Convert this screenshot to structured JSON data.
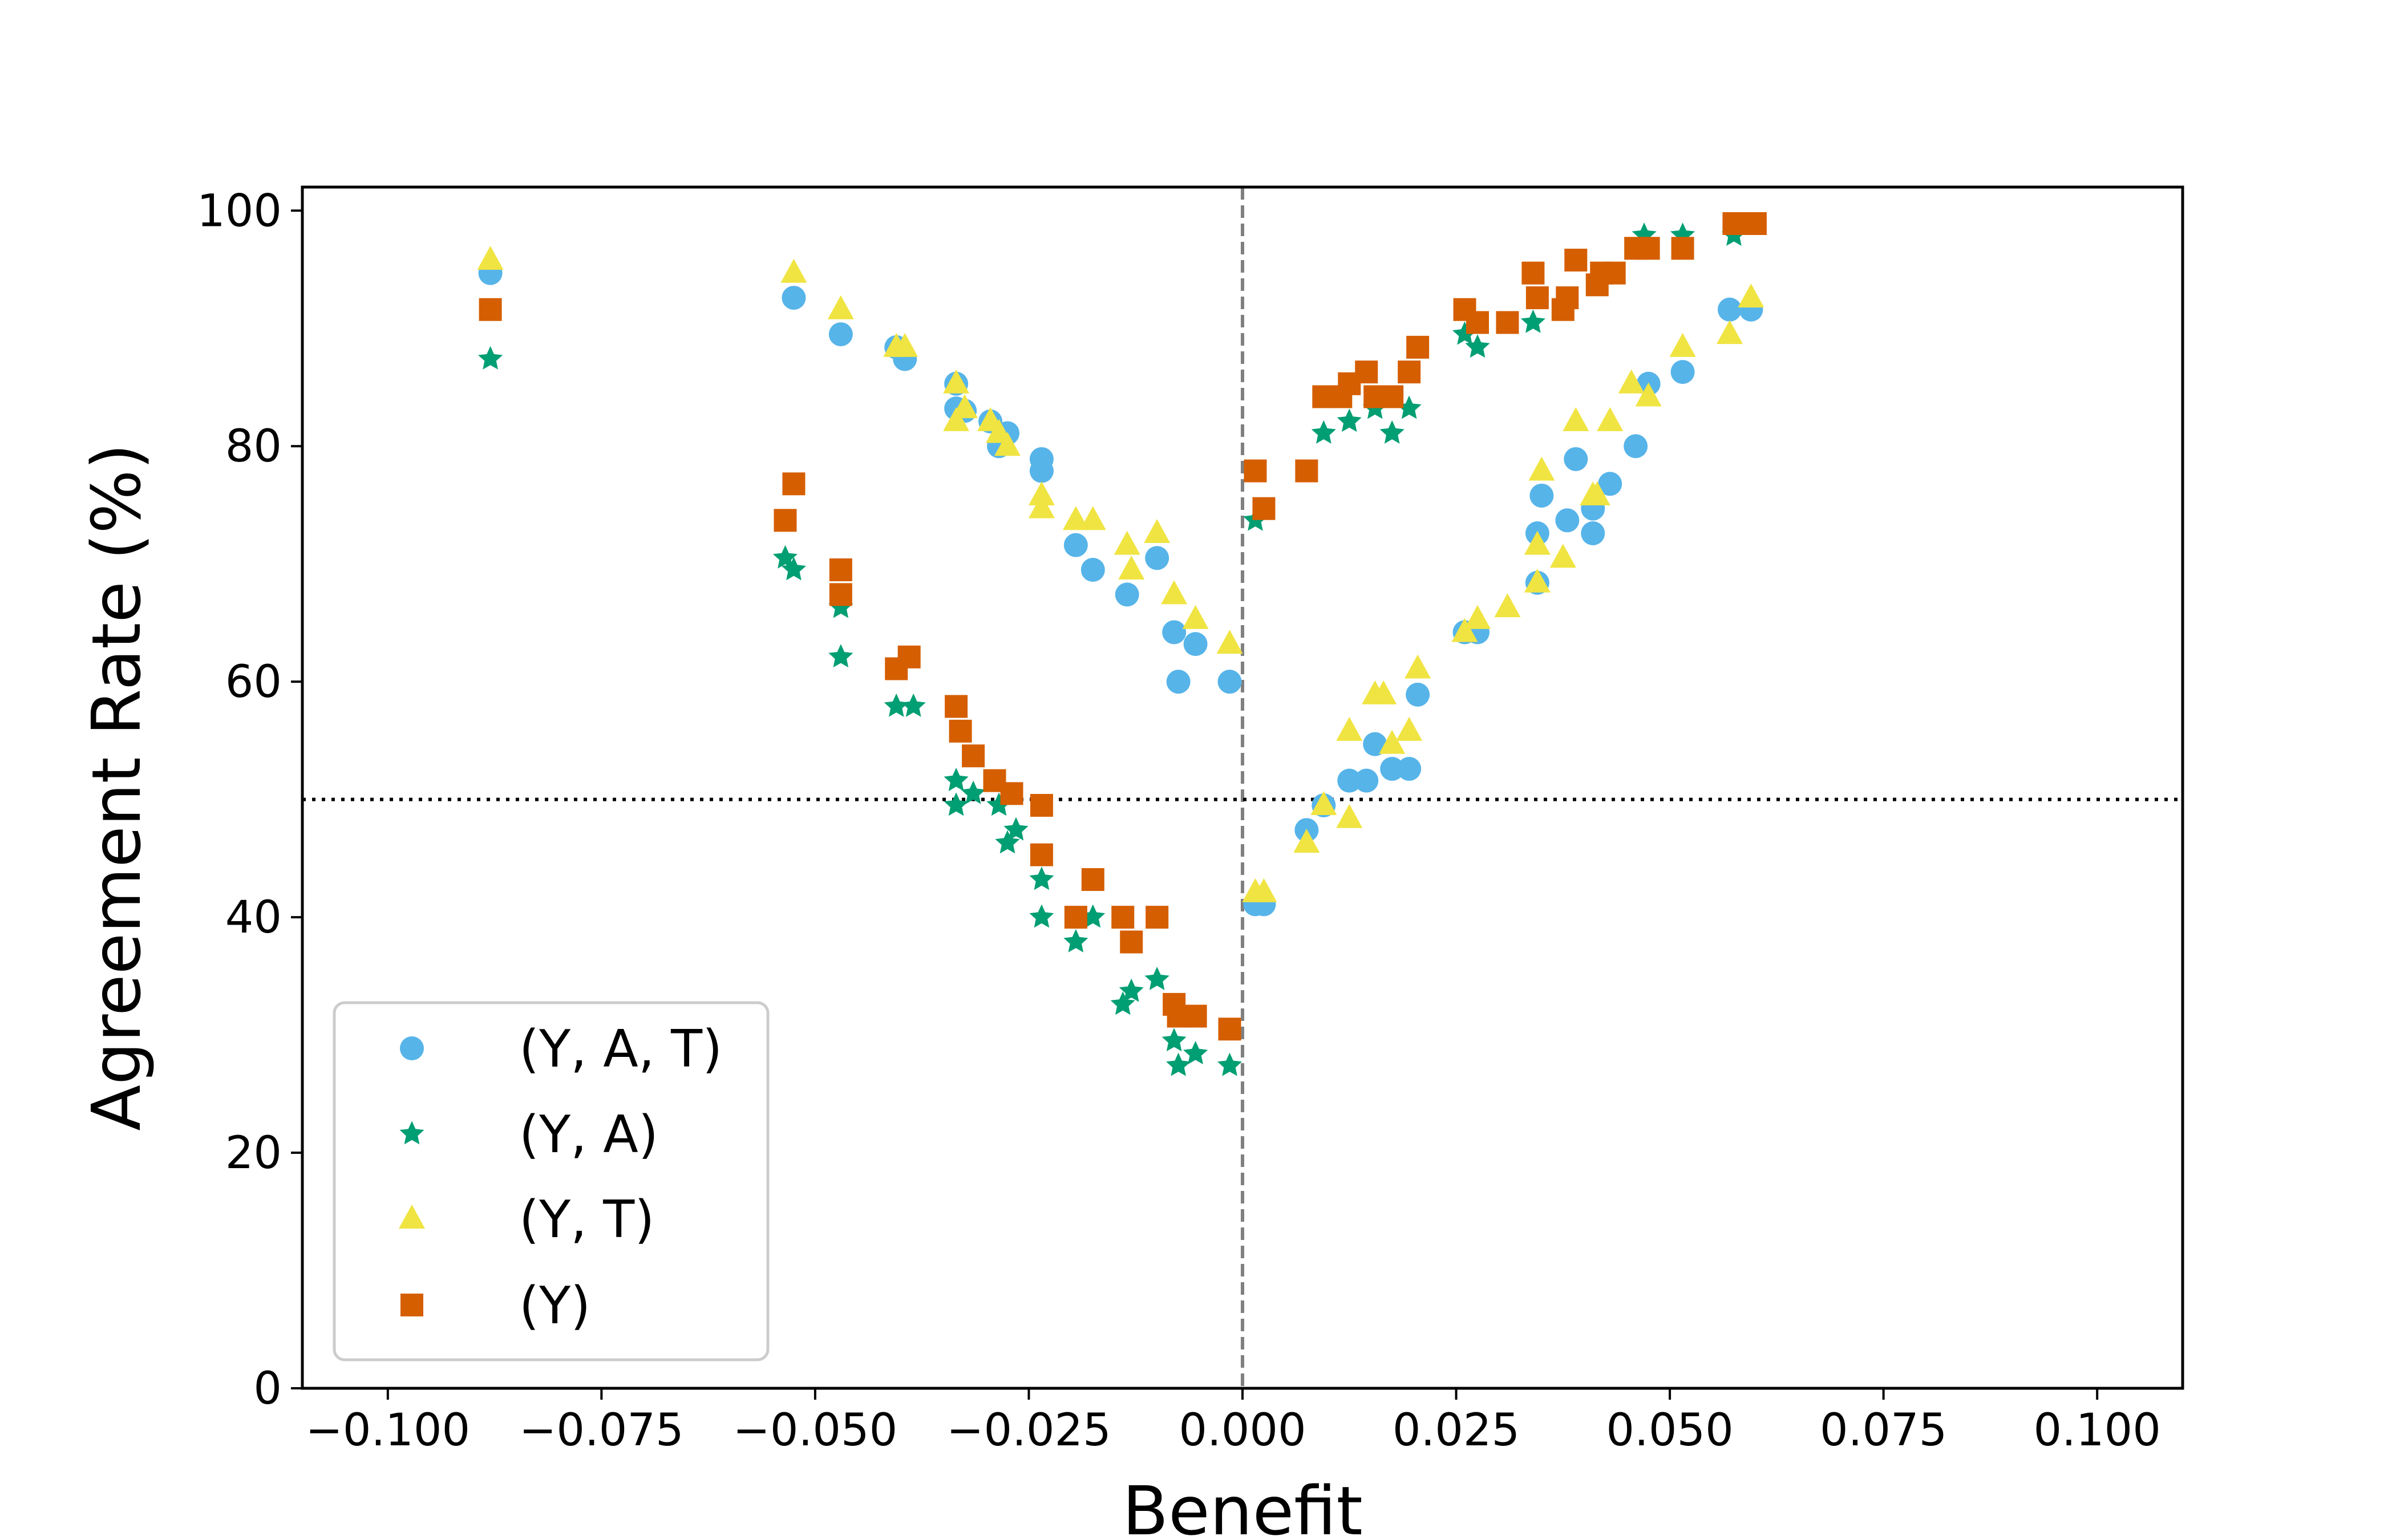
{
  "chart_data": {
    "type": "scatter",
    "title": "",
    "xlabel": "Benefit",
    "ylabel": "Agreement Rate (%)",
    "xlim": [
      -0.11,
      0.11
    ],
    "ylim": [
      0,
      102
    ],
    "x_ticks": [
      -0.1,
      -0.075,
      -0.05,
      -0.025,
      0.0,
      0.025,
      0.05,
      0.075,
      0.1
    ],
    "x_tick_labels": [
      "−0.100",
      "−0.075",
      "−0.050",
      "−0.025",
      "0.000",
      "0.025",
      "0.050",
      "0.075",
      "0.100"
    ],
    "y_ticks": [
      0,
      20,
      40,
      60,
      80,
      100
    ],
    "y_tick_labels": [
      "0",
      "20",
      "40",
      "60",
      "80",
      "100"
    ],
    "reference_lines": [
      {
        "orientation": "vertical",
        "value": 0.0,
        "style": "dashed",
        "color": "#808080"
      },
      {
        "orientation": "horizontal",
        "value": 50,
        "style": "dotted",
        "color": "#000000"
      }
    ],
    "legend_position": "bottom-left",
    "series": [
      {
        "name": "(Y, A, T)",
        "marker": "circle",
        "color": "#56B4E9",
        "points": [
          [
            -0.088,
            94.7
          ],
          [
            -0.0525,
            92.6
          ],
          [
            -0.047,
            89.5
          ],
          [
            -0.0405,
            88.4
          ],
          [
            -0.0395,
            87.4
          ],
          [
            -0.0335,
            85.3
          ],
          [
            -0.0335,
            83.2
          ],
          [
            -0.0325,
            83.0
          ],
          [
            -0.0295,
            82.1
          ],
          [
            -0.0275,
            81.1
          ],
          [
            -0.0285,
            80.0
          ],
          [
            -0.0235,
            78.9
          ],
          [
            -0.0235,
            77.9
          ],
          [
            -0.0195,
            71.6
          ],
          [
            -0.0175,
            69.5
          ],
          [
            -0.0135,
            67.4
          ],
          [
            -0.01,
            70.5
          ],
          [
            -0.008,
            64.2
          ],
          [
            -0.0075,
            60.0
          ],
          [
            -0.0055,
            63.2
          ],
          [
            -0.0015,
            60.0
          ],
          [
            0.0015,
            41.1
          ],
          [
            0.0025,
            41.1
          ],
          [
            0.0075,
            47.4
          ],
          [
            0.0095,
            49.5
          ],
          [
            0.0125,
            51.6
          ],
          [
            0.0145,
            51.6
          ],
          [
            0.0155,
            54.7
          ],
          [
            0.0175,
            52.6
          ],
          [
            0.0195,
            52.6
          ],
          [
            0.0205,
            58.9
          ],
          [
            0.026,
            64.2
          ],
          [
            0.0275,
            64.2
          ],
          [
            0.0345,
            72.6
          ],
          [
            0.0345,
            68.4
          ],
          [
            0.035,
            75.8
          ],
          [
            0.038,
            73.7
          ],
          [
            0.039,
            78.9
          ],
          [
            0.041,
            74.7
          ],
          [
            0.041,
            72.6
          ],
          [
            0.043,
            76.8
          ],
          [
            0.046,
            80.0
          ],
          [
            0.0475,
            85.3
          ],
          [
            0.0515,
            86.3
          ],
          [
            0.057,
            91.6
          ],
          [
            0.0595,
            91.6
          ]
        ]
      },
      {
        "name": "(Y, A)",
        "marker": "star",
        "color": "#009E73",
        "points": [
          [
            -0.088,
            87.4
          ],
          [
            -0.0535,
            70.5
          ],
          [
            -0.0525,
            69.5
          ],
          [
            -0.047,
            66.3
          ],
          [
            -0.047,
            62.1
          ],
          [
            -0.0405,
            57.9
          ],
          [
            -0.0385,
            57.9
          ],
          [
            -0.0335,
            51.6
          ],
          [
            -0.0335,
            49.5
          ],
          [
            -0.0315,
            50.5
          ],
          [
            -0.0285,
            49.5
          ],
          [
            -0.0275,
            46.3
          ],
          [
            -0.0265,
            47.4
          ],
          [
            -0.0235,
            43.2
          ],
          [
            -0.0235,
            40.0
          ],
          [
            -0.0195,
            37.9
          ],
          [
            -0.0175,
            40.0
          ],
          [
            -0.014,
            32.6
          ],
          [
            -0.013,
            33.7
          ],
          [
            -0.01,
            34.7
          ],
          [
            -0.008,
            29.5
          ],
          [
            -0.0075,
            27.4
          ],
          [
            -0.0055,
            28.4
          ],
          [
            -0.0015,
            27.4
          ],
          [
            0.0015,
            73.7
          ],
          [
            0.0095,
            81.1
          ],
          [
            0.0125,
            82.1
          ],
          [
            0.0155,
            83.2
          ],
          [
            0.0175,
            81.1
          ],
          [
            0.0195,
            83.2
          ],
          [
            0.026,
            89.5
          ],
          [
            0.0275,
            88.4
          ],
          [
            0.034,
            90.5
          ],
          [
            0.047,
            97.9
          ],
          [
            0.0515,
            97.9
          ],
          [
            0.0575,
            97.9
          ]
        ]
      },
      {
        "name": "(Y, T)",
        "marker": "triangle",
        "color": "#F0E442",
        "points": [
          [
            -0.088,
            95.8
          ],
          [
            -0.0525,
            94.7
          ],
          [
            -0.047,
            91.6
          ],
          [
            -0.0405,
            88.4
          ],
          [
            -0.0395,
            88.4
          ],
          [
            -0.0335,
            85.3
          ],
          [
            -0.0335,
            82.1
          ],
          [
            -0.0325,
            83.2
          ],
          [
            -0.0295,
            82.1
          ],
          [
            -0.0285,
            81.1
          ],
          [
            -0.0275,
            80.0
          ],
          [
            -0.0235,
            75.8
          ],
          [
            -0.0235,
            74.7
          ],
          [
            -0.0195,
            73.7
          ],
          [
            -0.0175,
            73.7
          ],
          [
            -0.0135,
            71.6
          ],
          [
            -0.013,
            69.5
          ],
          [
            -0.01,
            72.6
          ],
          [
            -0.008,
            67.4
          ],
          [
            -0.0055,
            65.3
          ],
          [
            -0.0015,
            63.2
          ],
          [
            0.0015,
            42.1
          ],
          [
            0.0025,
            42.1
          ],
          [
            0.0075,
            46.3
          ],
          [
            0.0095,
            49.5
          ],
          [
            0.0125,
            48.4
          ],
          [
            0.0125,
            55.8
          ],
          [
            0.0155,
            58.9
          ],
          [
            0.0165,
            58.9
          ],
          [
            0.0175,
            54.7
          ],
          [
            0.0195,
            55.8
          ],
          [
            0.0205,
            61.1
          ],
          [
            0.026,
            64.2
          ],
          [
            0.0275,
            65.3
          ],
          [
            0.031,
            66.3
          ],
          [
            0.0345,
            71.6
          ],
          [
            0.0345,
            68.4
          ],
          [
            0.035,
            77.9
          ],
          [
            0.0375,
            70.5
          ],
          [
            0.039,
            82.1
          ],
          [
            0.041,
            75.8
          ],
          [
            0.0415,
            75.8
          ],
          [
            0.043,
            82.1
          ],
          [
            0.0455,
            85.3
          ],
          [
            0.0475,
            84.2
          ],
          [
            0.0515,
            88.4
          ],
          [
            0.057,
            89.5
          ],
          [
            0.0595,
            92.6
          ]
        ]
      },
      {
        "name": "(Y)",
        "marker": "square",
        "color": "#D55E00",
        "points": [
          [
            -0.088,
            91.6
          ],
          [
            -0.0535,
            73.7
          ],
          [
            -0.0525,
            76.8
          ],
          [
            -0.047,
            69.5
          ],
          [
            -0.047,
            67.4
          ],
          [
            -0.0405,
            61.1
          ],
          [
            -0.039,
            62.1
          ],
          [
            -0.0335,
            57.9
          ],
          [
            -0.033,
            55.8
          ],
          [
            -0.0315,
            53.7
          ],
          [
            -0.029,
            51.6
          ],
          [
            -0.027,
            50.5
          ],
          [
            -0.0235,
            49.5
          ],
          [
            -0.0235,
            45.3
          ],
          [
            -0.0195,
            40.0
          ],
          [
            -0.0175,
            43.2
          ],
          [
            -0.014,
            40.0
          ],
          [
            -0.013,
            37.9
          ],
          [
            -0.01,
            40.0
          ],
          [
            -0.008,
            32.6
          ],
          [
            -0.0075,
            31.6
          ],
          [
            -0.0055,
            31.6
          ],
          [
            -0.0015,
            30.5
          ],
          [
            0.0015,
            77.9
          ],
          [
            0.0025,
            74.7
          ],
          [
            0.0075,
            77.9
          ],
          [
            0.0095,
            84.2
          ],
          [
            0.0115,
            84.2
          ],
          [
            0.0125,
            85.3
          ],
          [
            0.0145,
            86.3
          ],
          [
            0.0155,
            84.2
          ],
          [
            0.0175,
            84.2
          ],
          [
            0.0195,
            86.3
          ],
          [
            0.0205,
            88.4
          ],
          [
            0.026,
            91.6
          ],
          [
            0.0275,
            90.5
          ],
          [
            0.031,
            90.5
          ],
          [
            0.034,
            94.7
          ],
          [
            0.0345,
            92.6
          ],
          [
            0.0375,
            91.6
          ],
          [
            0.038,
            92.6
          ],
          [
            0.039,
            95.8
          ],
          [
            0.0415,
            93.7
          ],
          [
            0.042,
            94.7
          ],
          [
            0.0435,
            94.7
          ],
          [
            0.046,
            96.8
          ],
          [
            0.0475,
            96.8
          ],
          [
            0.0515,
            96.8
          ],
          [
            0.0575,
            98.9
          ],
          [
            0.06,
            98.9
          ]
        ]
      }
    ]
  }
}
